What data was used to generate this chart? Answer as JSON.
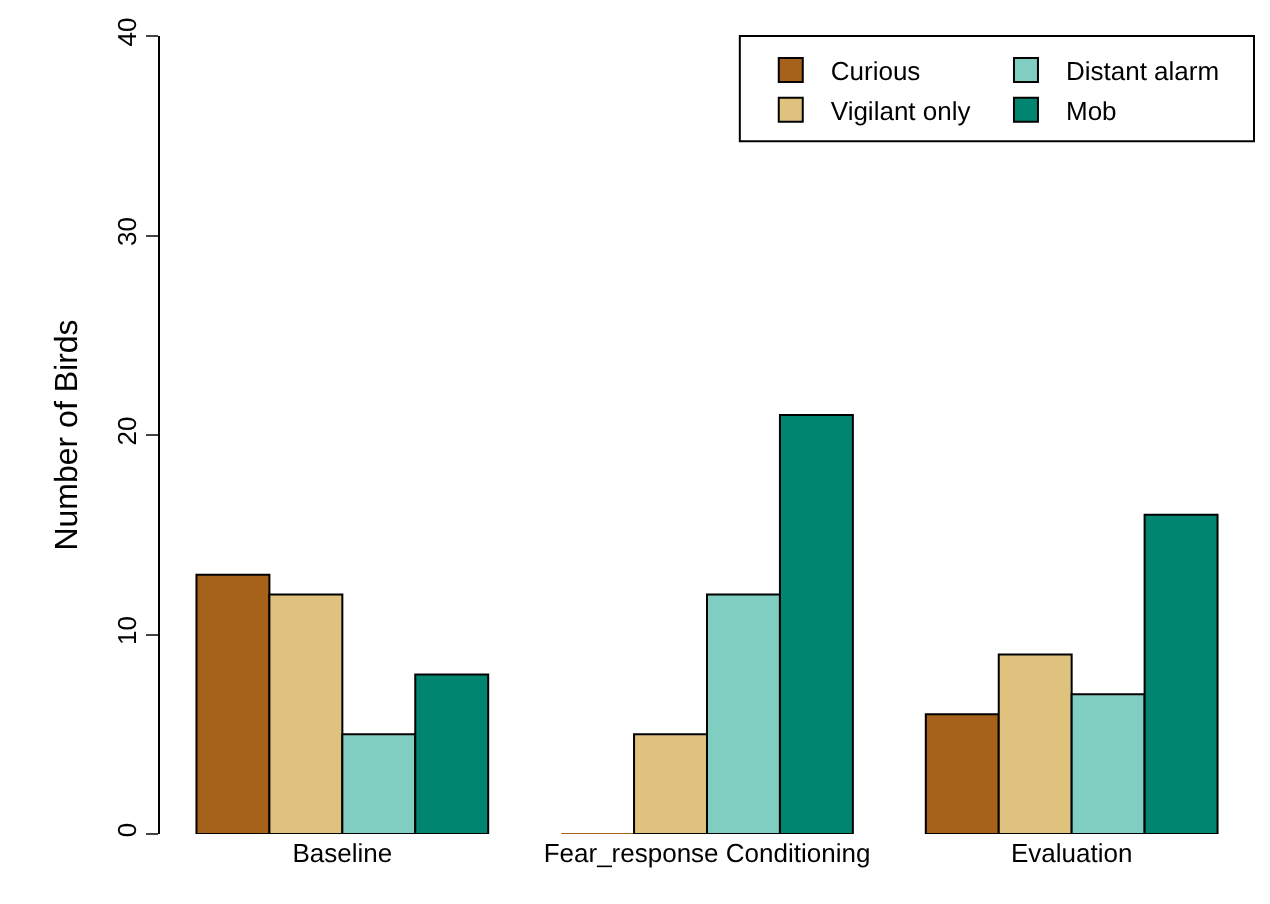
{
  "chart_data": {
    "type": "bar",
    "ylabel": "Number of Birds",
    "categories": [
      "Baseline",
      "Fear_response Conditioning",
      "Evaluation"
    ],
    "series": [
      {
        "name": "Curious",
        "color": "#a6611a",
        "values": [
          13,
          0,
          6
        ]
      },
      {
        "name": "Vigilant only",
        "color": "#dfc27d",
        "values": [
          12,
          5,
          9
        ]
      },
      {
        "name": "Distant alarm",
        "color": "#80cdc1",
        "values": [
          5,
          12,
          7
        ]
      },
      {
        "name": "Mob",
        "color": "#018571",
        "values": [
          8,
          21,
          16
        ]
      }
    ],
    "ylim": [
      0,
      40
    ],
    "yticks": [
      0,
      10,
      20,
      30,
      40
    ],
    "legend": "top right"
  }
}
